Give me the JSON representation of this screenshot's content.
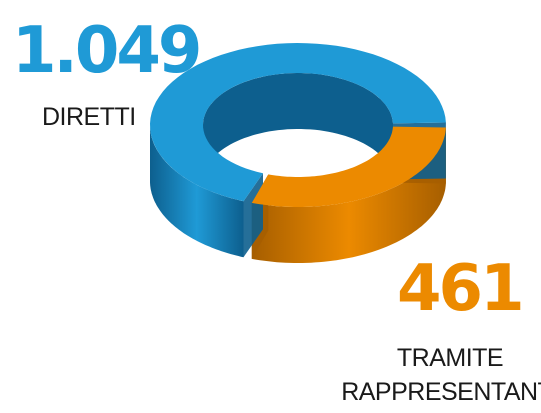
{
  "chart_data": {
    "type": "pie",
    "style": "3d-donut",
    "series": [
      {
        "label": "DIRETTI",
        "value": 1049,
        "display": "1.049",
        "color": "#1f9ad6",
        "shade": "#0d5f8e"
      },
      {
        "label": "TRAMITE RAPPRESENTANTI",
        "label_lines": [
          "TRAMITE",
          "RAPPRESENTANTI"
        ],
        "value": 461,
        "display": "461",
        "color": "#ec8a00",
        "shade": "#a65e00"
      }
    ]
  }
}
